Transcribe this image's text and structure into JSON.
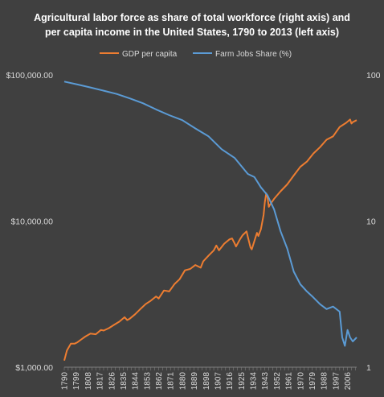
{
  "chart_data": {
    "type": "line",
    "title_lines": [
      "Agricultural labor force as share of total workforce (right axis) and",
      "per capita income in the United States, 1790 to 2013 (left axis)"
    ],
    "legend": [
      {
        "name": "GDP per capita",
        "color": "#ed7d31"
      },
      {
        "name": "Farm Jobs Share (%)",
        "color": "#5b9bd5"
      }
    ],
    "legend_placement": "top",
    "x_tick_labels": [
      "1790",
      "1799",
      "1808",
      "1817",
      "1826",
      "1835",
      "1844",
      "1853",
      "1862",
      "1871",
      "1880",
      "1889",
      "1898",
      "1907",
      "1916",
      "1925",
      "1934",
      "1943",
      "1952",
      "1961",
      "1970",
      "1979",
      "1988",
      "1997",
      "2006"
    ],
    "xlim": [
      1790,
      2013
    ],
    "left_axis": {
      "scale": "log",
      "ylim": [
        1000,
        100000
      ],
      "tick_labels": [
        "$1,000.00",
        "$10,000.00",
        "$100,000.00"
      ],
      "tick_values": [
        1000,
        10000,
        100000
      ]
    },
    "right_axis": {
      "scale": "log",
      "ylim": [
        1,
        100
      ],
      "tick_labels": [
        "1",
        "10",
        "100"
      ],
      "tick_values": [
        1,
        10,
        100
      ]
    },
    "grid": false,
    "series": [
      {
        "name": "GDP per capita",
        "axis": "left",
        "color": "#ed7d31",
        "x": [
          1790,
          1792,
          1795,
          1798,
          1800,
          1803,
          1806,
          1810,
          1814,
          1818,
          1820,
          1824,
          1828,
          1832,
          1836,
          1838,
          1840,
          1844,
          1848,
          1852,
          1856,
          1860,
          1862,
          1866,
          1870,
          1874,
          1878,
          1882,
          1886,
          1890,
          1894,
          1896,
          1900,
          1904,
          1906,
          1908,
          1912,
          1916,
          1918,
          1920,
          1921,
          1924,
          1926,
          1929,
          1930,
          1932,
          1933,
          1936,
          1937,
          1938,
          1940,
          1942,
          1943,
          1944,
          1945,
          1946,
          1947,
          1950,
          1955,
          1960,
          1965,
          1970,
          1975,
          1980,
          1985,
          1990,
          1995,
          2000,
          2005,
          2008,
          2009,
          2010,
          2013
        ],
        "values": [
          1110,
          1300,
          1450,
          1450,
          1480,
          1550,
          1620,
          1700,
          1680,
          1800,
          1780,
          1850,
          1950,
          2050,
          2200,
          2100,
          2150,
          2300,
          2500,
          2700,
          2850,
          3050,
          2950,
          3350,
          3300,
          3700,
          4000,
          4600,
          4700,
          5000,
          4800,
          5300,
          5800,
          6300,
          6800,
          6300,
          7000,
          7500,
          7600,
          7000,
          6700,
          7500,
          8000,
          8500,
          7800,
          6600,
          6400,
          7800,
          8300,
          7900,
          8800,
          11000,
          13500,
          15500,
          14500,
          12500,
          13000,
          14200,
          16000,
          17800,
          20500,
          23500,
          25500,
          29000,
          32000,
          36000,
          38000,
          44000,
          47000,
          49500,
          46500,
          47500,
          49000
        ]
      },
      {
        "name": "Farm Jobs Share (%)",
        "axis": "right",
        "color": "#5b9bd5",
        "x": [
          1790,
          1800,
          1810,
          1820,
          1830,
          1840,
          1850,
          1860,
          1870,
          1880,
          1890,
          1900,
          1910,
          1920,
          1930,
          1935,
          1940,
          1945,
          1950,
          1955,
          1960,
          1965,
          1970,
          1975,
          1980,
          1985,
          1990,
          1995,
          2000,
          2002,
          2004,
          2006,
          2008,
          2010,
          2013
        ],
        "values": [
          90,
          86,
          82,
          78,
          74,
          69,
          64,
          58,
          53,
          49,
          43,
          38,
          31,
          27,
          21,
          20,
          17,
          15,
          12,
          8.5,
          6.5,
          4.5,
          3.7,
          3.3,
          3.0,
          2.7,
          2.5,
          2.6,
          2.4,
          1.6,
          1.4,
          1.8,
          1.6,
          1.5,
          1.6
        ]
      }
    ]
  }
}
